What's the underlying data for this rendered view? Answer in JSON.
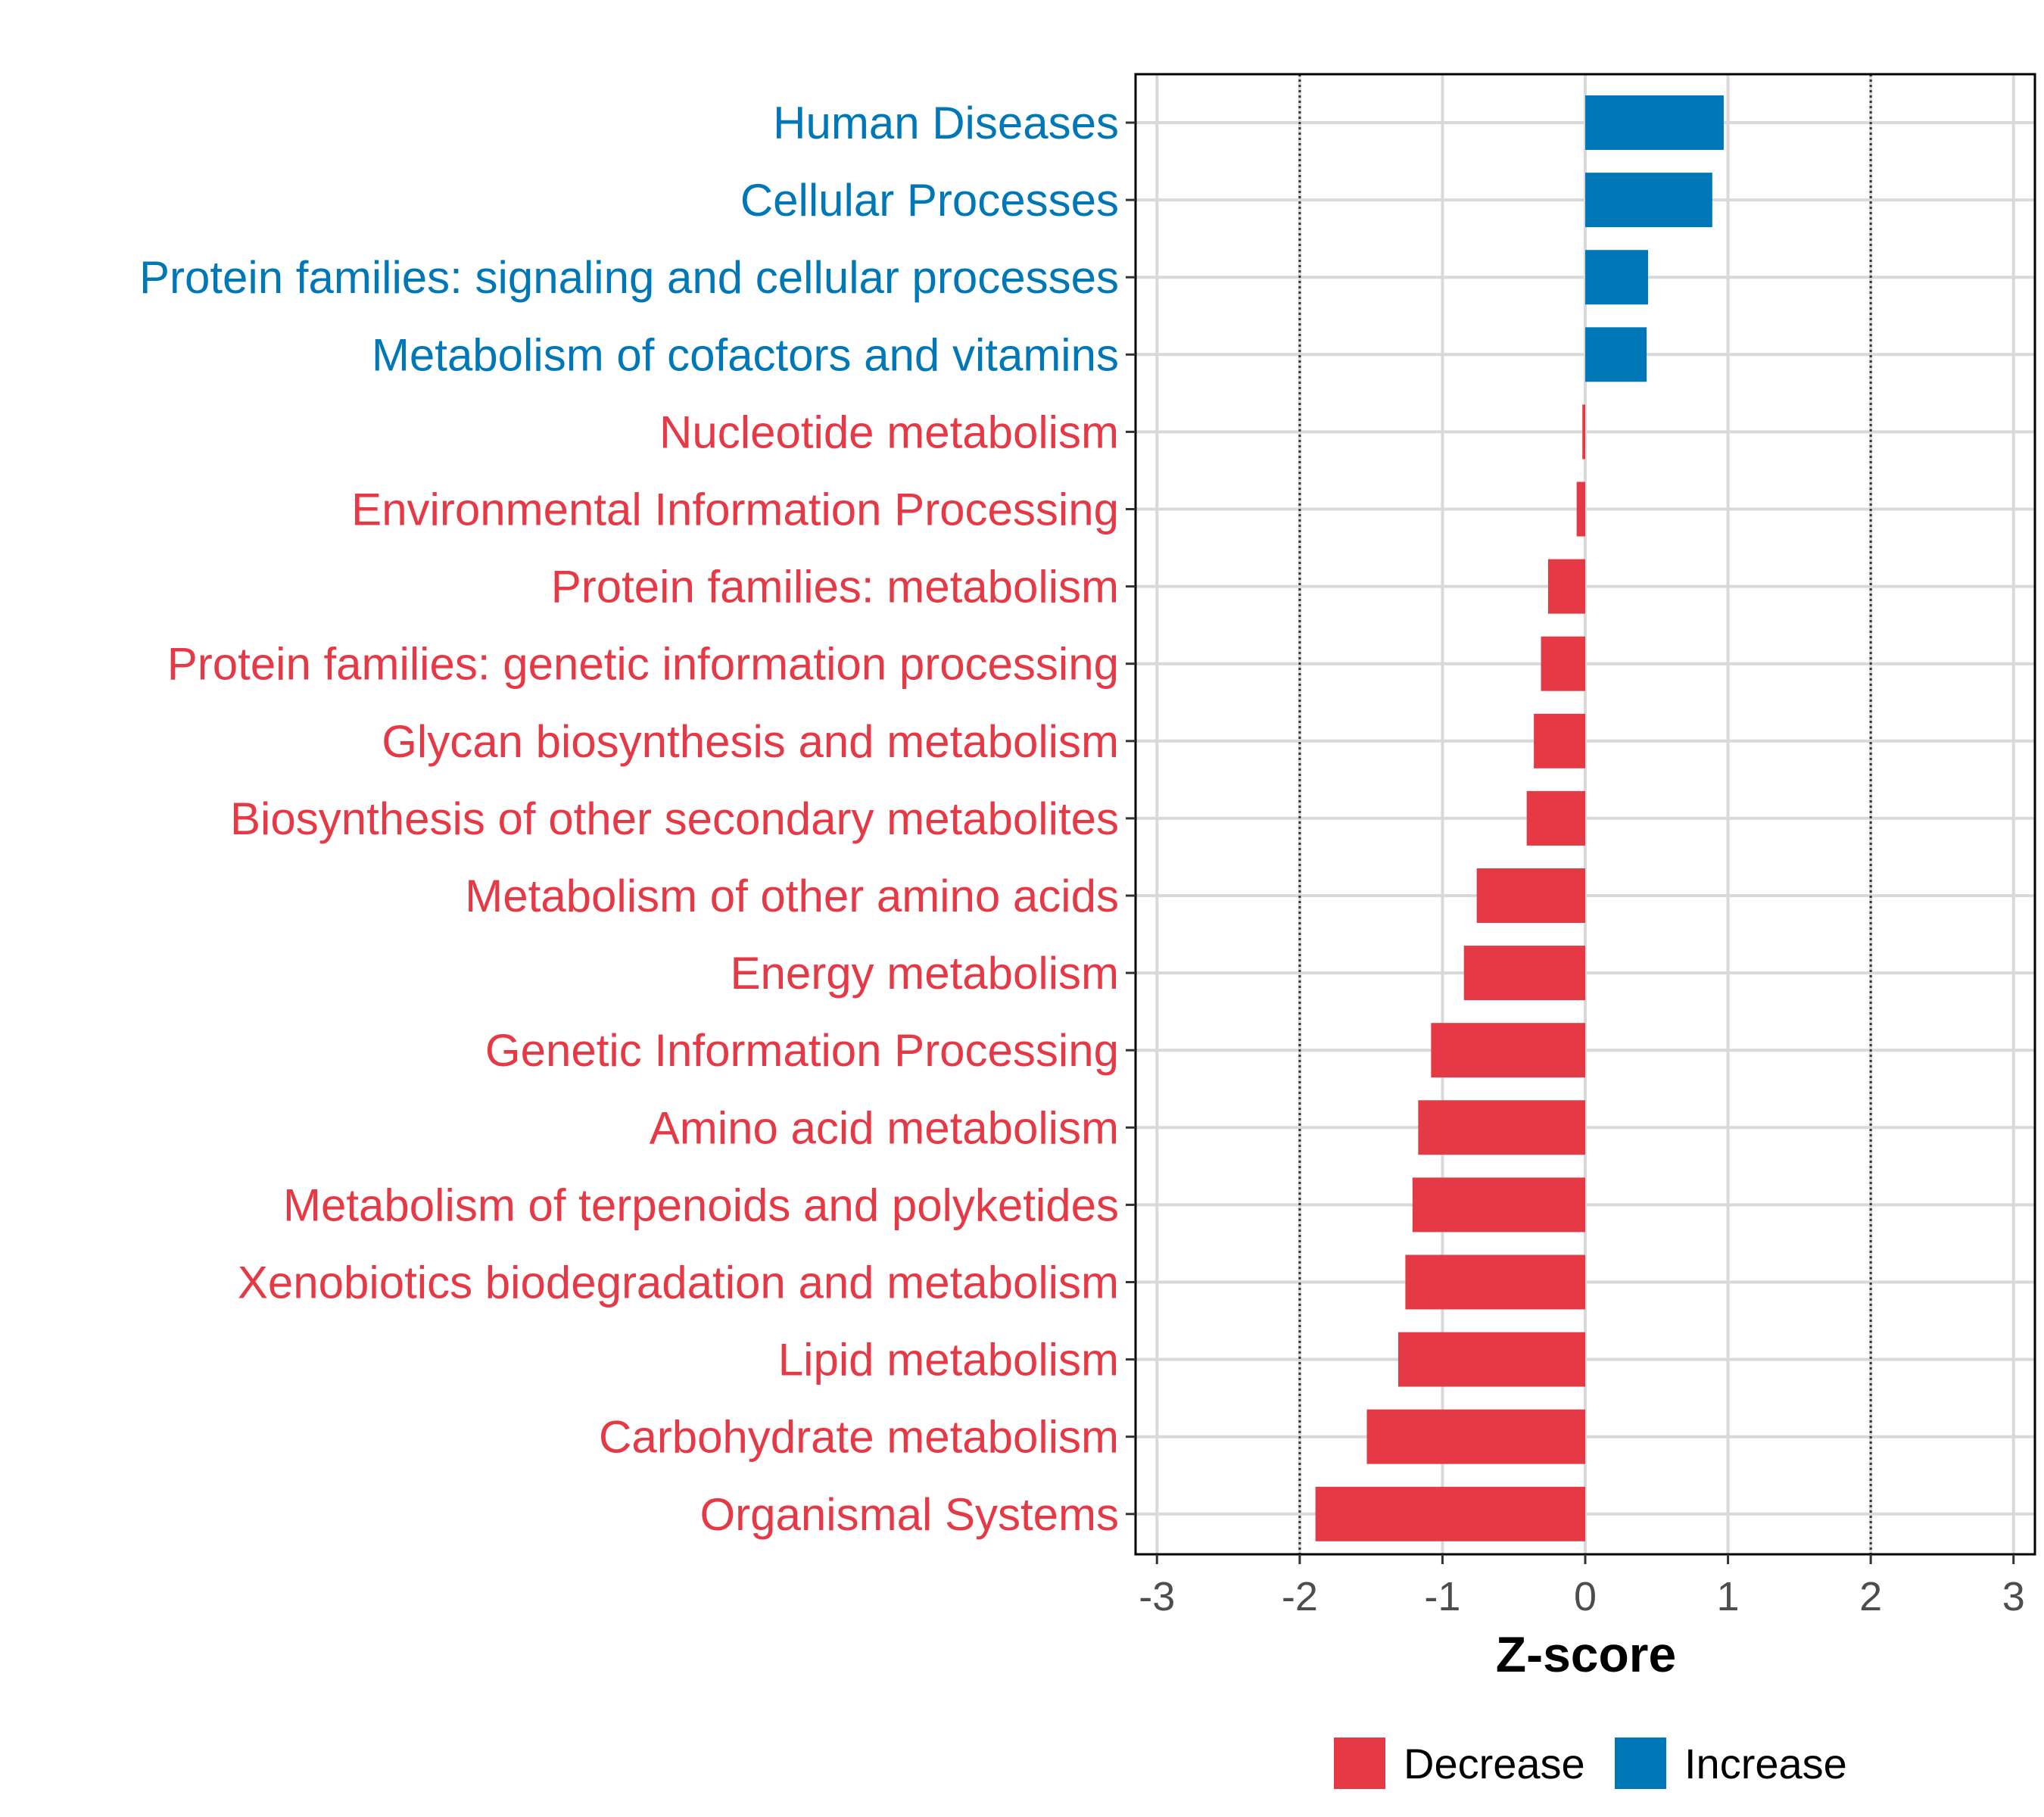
{
  "chart_data": {
    "type": "bar",
    "orientation": "horizontal",
    "title": "",
    "xlabel": "Z-score",
    "ylabel": "",
    "xlim": [
      -3.15,
      3.15
    ],
    "x_ticks": [
      -3,
      -2,
      -1,
      0,
      1,
      2,
      3
    ],
    "x_tick_labels": [
      "-3",
      "-2",
      "-1",
      "0",
      "1",
      "2",
      "3"
    ],
    "reference_lines": [
      -2,
      2
    ],
    "grid": true,
    "legend_position": "bottom",
    "categories": [
      "Human Diseases",
      "Cellular Processes",
      "Protein families: signaling and cellular processes",
      "Metabolism of cofactors and vitamins",
      "Nucleotide metabolism",
      "Environmental Information Processing",
      "Protein families: metabolism",
      "Protein families: genetic information processing",
      "Glycan biosynthesis and metabolism",
      "Biosynthesis of other secondary metabolites",
      "Metabolism of other amino acids",
      "Energy metabolism",
      "Genetic Information Processing",
      "Amino acid metabolism",
      "Metabolism of terpenoids and polyketides",
      "Xenobiotics biodegradation and metabolism",
      "Lipid metabolism",
      "Carbohydrate metabolism",
      "Organismal Systems"
    ],
    "values": [
      0.97,
      0.89,
      0.44,
      0.43,
      -0.02,
      -0.06,
      -0.26,
      -0.31,
      -0.36,
      -0.41,
      -0.76,
      -0.85,
      -1.08,
      -1.17,
      -1.21,
      -1.26,
      -1.31,
      -1.53,
      -1.89
    ],
    "groups": [
      "Increase",
      "Increase",
      "Increase",
      "Increase",
      "Decrease",
      "Decrease",
      "Decrease",
      "Decrease",
      "Decrease",
      "Decrease",
      "Decrease",
      "Decrease",
      "Decrease",
      "Decrease",
      "Decrease",
      "Decrease",
      "Decrease",
      "Decrease",
      "Decrease"
    ],
    "legend": [
      {
        "label": "Decrease",
        "color": "#E63946"
      },
      {
        "label": "Increase",
        "color": "#0077B6"
      }
    ]
  }
}
